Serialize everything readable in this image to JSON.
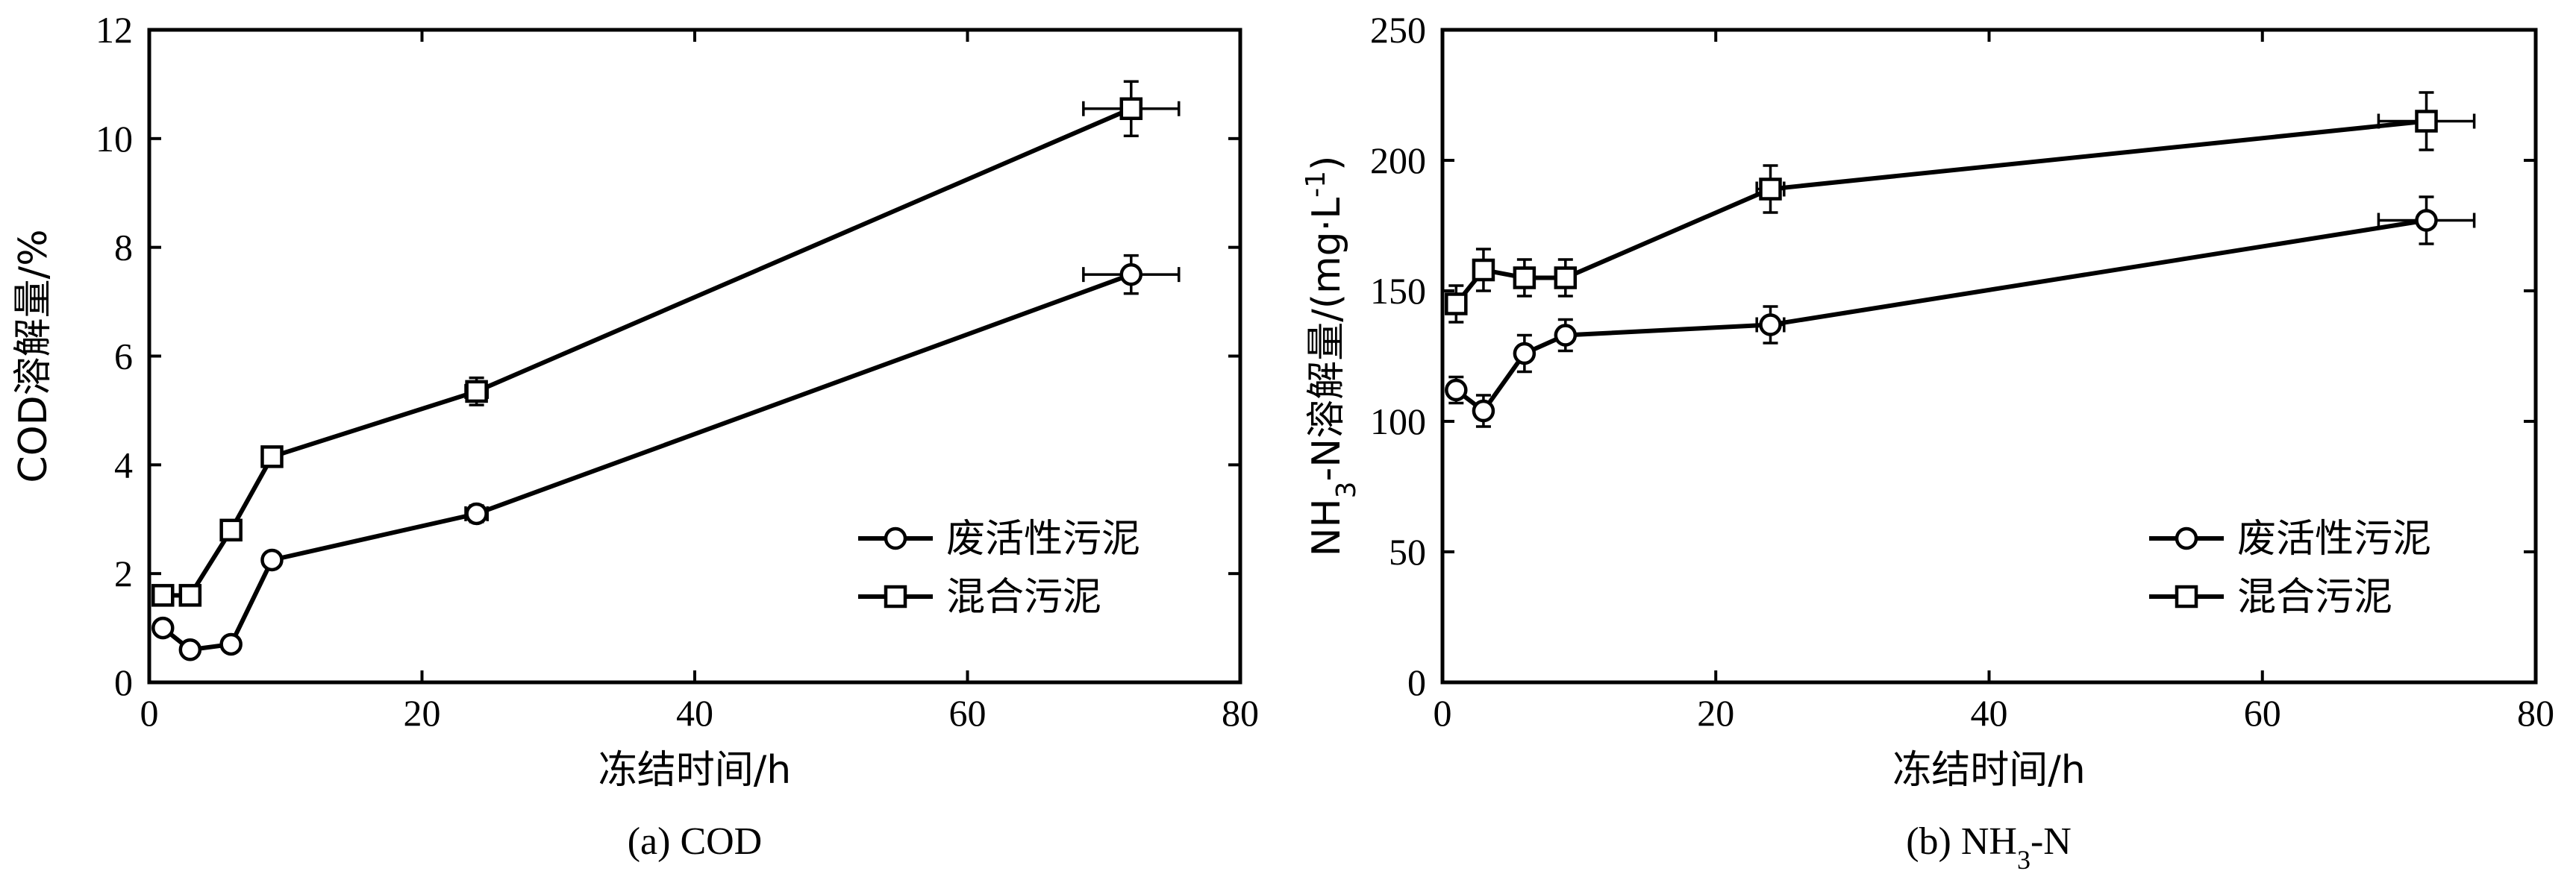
{
  "chart_data": [
    {
      "type": "line",
      "caption": "(a) COD",
      "xlabel": "冻结时间/h",
      "ylabel": "COD溶解量/%",
      "xlim": [
        0,
        80
      ],
      "ylim": [
        0,
        12
      ],
      "xticks": [
        0,
        20,
        40,
        60,
        80
      ],
      "yticks": [
        0,
        2,
        4,
        6,
        8,
        10,
        12
      ],
      "legend": "bottom-right",
      "series": [
        {
          "name": "废活性污泥",
          "marker": "circle",
          "x": [
            1,
            3,
            6,
            9,
            24,
            72
          ],
          "y": [
            1.0,
            0.6,
            0.7,
            2.25,
            3.1,
            7.5
          ],
          "yerr": [
            0,
            0,
            0,
            0,
            0.15,
            0.35
          ],
          "xerr": [
            0,
            0,
            0,
            0,
            0.8,
            3.5
          ]
        },
        {
          "name": "混合污泥",
          "marker": "square",
          "x": [
            1,
            3,
            6,
            9,
            24,
            72
          ],
          "y": [
            1.6,
            1.6,
            2.8,
            4.15,
            5.35,
            10.55
          ],
          "yerr": [
            0,
            0,
            0,
            0,
            0.25,
            0.5
          ],
          "xerr": [
            0,
            0,
            0,
            0,
            0.8,
            3.5
          ]
        }
      ]
    },
    {
      "type": "line",
      "caption": "(b) NH",
      "caption_sub": "3",
      "caption_tail": "-N",
      "xlabel": "冻结时间/h",
      "ylabel": "NH",
      "ylabel_sub": "3",
      "ylabel_mid": "-N溶解量/(mg·L",
      "ylabel_sup": "-1",
      "ylabel_tail": ")",
      "xlim": [
        0,
        80
      ],
      "ylim": [
        0,
        250
      ],
      "xticks": [
        0,
        20,
        40,
        60,
        80
      ],
      "yticks": [
        0,
        50,
        100,
        150,
        200,
        250
      ],
      "legend": "bottom-right",
      "series": [
        {
          "name": "废活性污泥",
          "marker": "circle",
          "x": [
            1,
            3,
            6,
            9,
            24,
            72
          ],
          "y": [
            112,
            104,
            126,
            133,
            137,
            177
          ],
          "yerr": [
            5,
            6,
            7,
            6,
            7,
            9
          ],
          "xerr": [
            0,
            0,
            0,
            0,
            1,
            3.5
          ]
        },
        {
          "name": "混合污泥",
          "marker": "square",
          "x": [
            1,
            3,
            6,
            9,
            24,
            72
          ],
          "y": [
            145,
            158,
            155,
            155,
            189,
            215
          ],
          "yerr": [
            7,
            8,
            7,
            7,
            9,
            11
          ],
          "xerr": [
            0,
            0,
            0,
            0,
            1,
            3.5
          ]
        }
      ]
    }
  ]
}
